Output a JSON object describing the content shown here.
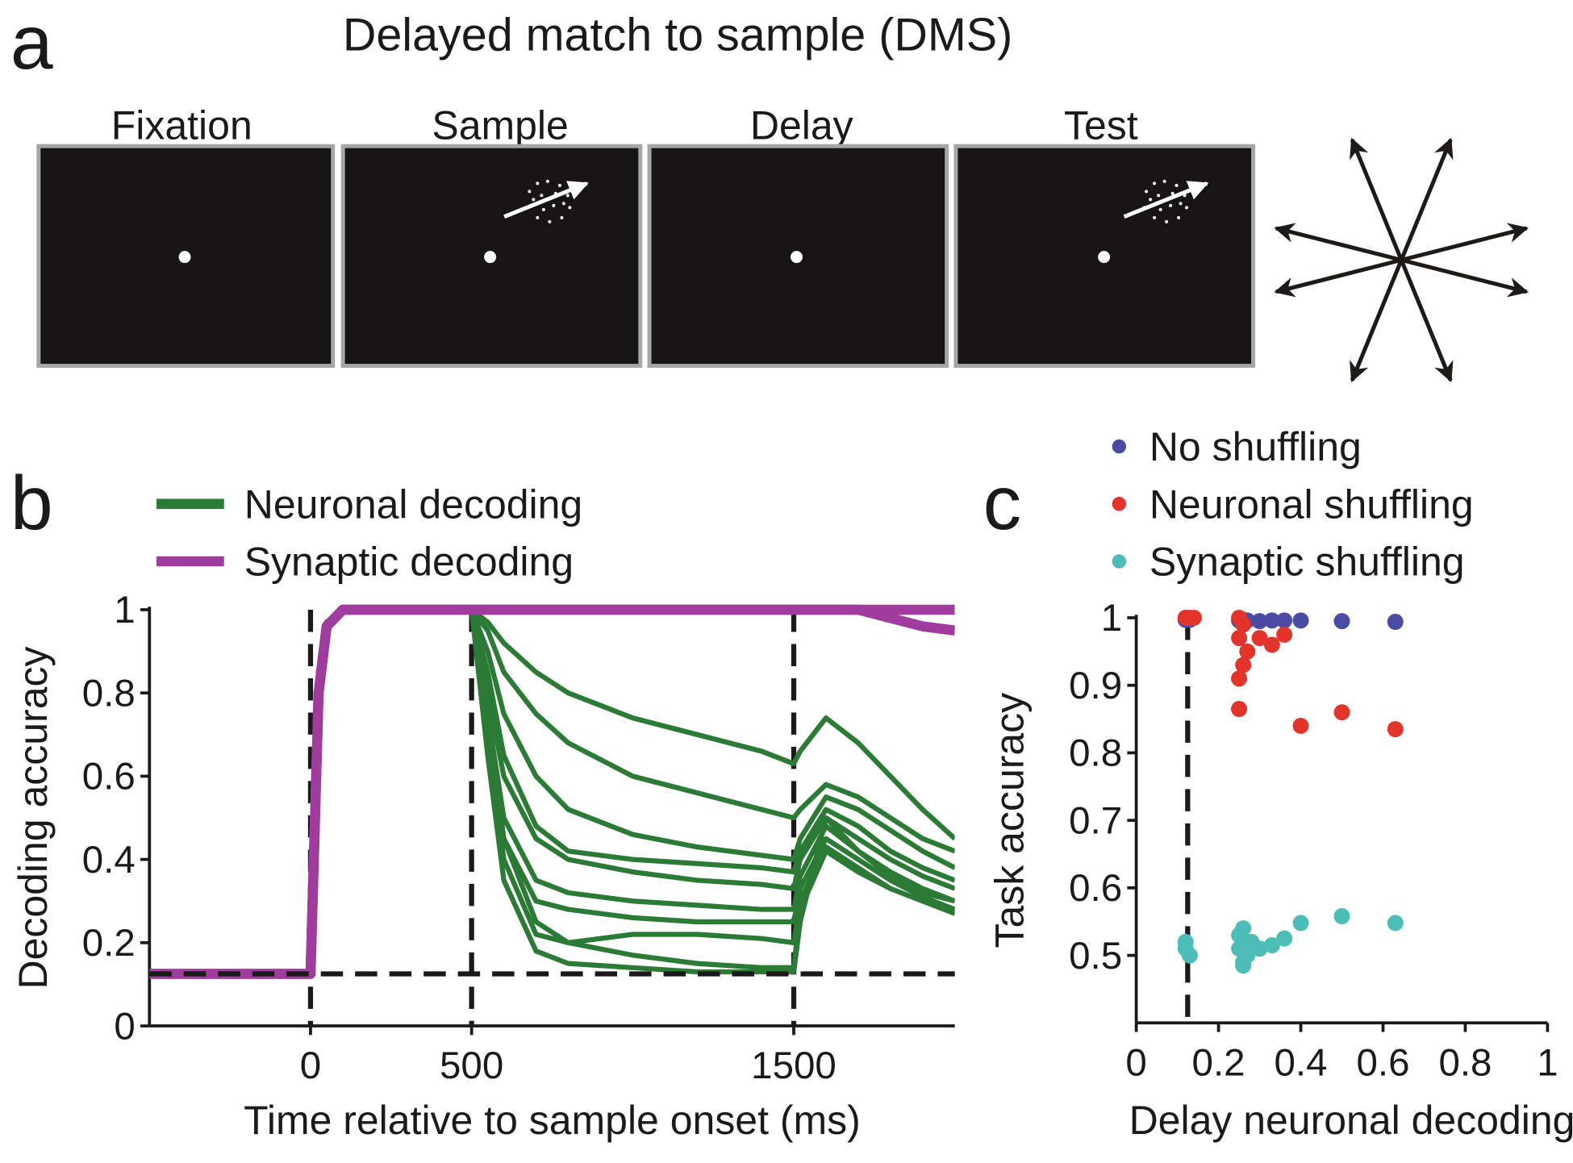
{
  "panel_a": {
    "letter": "a",
    "title": "Delayed match to sample (DMS)",
    "frames": [
      "Fixation",
      "Sample",
      "Delay",
      "Test"
    ]
  },
  "chart_data": [
    {
      "type": "line",
      "letter": "b",
      "xlabel": "Time relative to sample onset (ms)",
      "ylabel": "Decoding accuracy",
      "x": [
        -500,
        -250,
        0,
        25,
        50,
        100,
        200,
        300,
        400,
        500,
        550,
        600,
        700,
        800,
        1000,
        1200,
        1400,
        1500,
        1520,
        1600,
        1700,
        1800,
        1900,
        2000
      ],
      "xlim": [
        -500,
        2000
      ],
      "xticks": [
        0,
        500,
        1500
      ],
      "ylim": [
        0,
        1
      ],
      "yticks": [
        0,
        0.2,
        0.4,
        0.6,
        0.8,
        1
      ],
      "hlines": [
        0.125
      ],
      "vlines": [
        0,
        500,
        1500
      ],
      "series": [
        {
          "name": "Neuronal decoding",
          "color": "#2b7a35",
          "lines": [
            [
              0.125,
              0.13,
              0.125,
              0.85,
              0.97,
              1,
              1,
              1,
              1,
              1,
              0.97,
              0.92,
              0.85,
              0.8,
              0.74,
              0.7,
              0.66,
              0.63,
              0.66,
              0.74,
              0.68,
              0.6,
              0.52,
              0.45
            ],
            [
              0.125,
              0.13,
              0.125,
              0.85,
              0.97,
              1,
              1,
              1,
              1,
              1,
              0.95,
              0.85,
              0.75,
              0.68,
              0.6,
              0.56,
              0.52,
              0.5,
              0.52,
              0.58,
              0.55,
              0.5,
              0.45,
              0.42
            ],
            [
              0.125,
              0.13,
              0.125,
              0.85,
              0.97,
              1,
              1,
              1,
              1,
              1,
              0.9,
              0.75,
              0.6,
              0.52,
              0.46,
              0.43,
              0.41,
              0.4,
              0.45,
              0.55,
              0.52,
              0.47,
              0.42,
              0.38
            ],
            [
              0.125,
              0.13,
              0.125,
              0.85,
              0.97,
              1,
              1,
              1,
              1,
              1,
              0.85,
              0.65,
              0.48,
              0.42,
              0.4,
              0.39,
              0.38,
              0.37,
              0.42,
              0.52,
              0.48,
              0.42,
              0.38,
              0.35
            ],
            [
              0.125,
              0.13,
              0.125,
              0.85,
              0.97,
              1,
              1,
              1,
              1,
              1,
              0.8,
              0.6,
              0.45,
              0.4,
              0.37,
              0.35,
              0.34,
              0.33,
              0.4,
              0.5,
              0.45,
              0.4,
              0.36,
              0.33
            ],
            [
              0.125,
              0.13,
              0.125,
              0.85,
              0.97,
              1,
              1,
              1,
              1,
              1,
              0.75,
              0.5,
              0.35,
              0.32,
              0.3,
              0.29,
              0.28,
              0.28,
              0.36,
              0.48,
              0.42,
              0.37,
              0.33,
              0.3
            ],
            [
              0.125,
              0.13,
              0.125,
              0.85,
              0.97,
              1,
              1,
              1,
              1,
              1,
              0.7,
              0.45,
              0.3,
              0.28,
              0.26,
              0.25,
              0.25,
              0.25,
              0.33,
              0.45,
              0.4,
              0.35,
              0.31,
              0.28
            ],
            [
              0.125,
              0.13,
              0.125,
              0.85,
              0.97,
              1,
              1,
              1,
              1,
              1,
              0.7,
              0.4,
              0.22,
              0.2,
              0.22,
              0.22,
              0.21,
              0.2,
              0.3,
              0.43,
              0.38,
              0.33,
              0.3,
              0.27
            ],
            [
              0.125,
              0.13,
              0.125,
              0.85,
              0.97,
              1,
              1,
              1,
              1,
              1,
              0.75,
              0.45,
              0.25,
              0.2,
              0.17,
              0.15,
              0.14,
              0.14,
              0.28,
              0.42,
              0.37,
              0.33,
              0.3,
              0.28
            ],
            [
              0.125,
              0.13,
              0.125,
              0.85,
              0.97,
              1,
              1,
              1,
              1,
              1,
              0.65,
              0.35,
              0.18,
              0.15,
              0.14,
              0.13,
              0.13,
              0.13,
              0.25,
              0.5,
              0.42,
              0.36,
              0.32,
              0.3
            ]
          ]
        },
        {
          "name": "Synaptic decoding",
          "color": "#a03c9e",
          "lines": [
            [
              0.125,
              0.125,
              0.125,
              0.8,
              0.96,
              1,
              1,
              1,
              1,
              1,
              1,
              1,
              1,
              1,
              1,
              1,
              1,
              1,
              1,
              1,
              1,
              1,
              1,
              1
            ],
            [
              0.125,
              0.125,
              0.125,
              0.8,
              0.96,
              1,
              1,
              1,
              1,
              1,
              1,
              1,
              1,
              1,
              1,
              1,
              1,
              1,
              1,
              1,
              1,
              0.98,
              0.96,
              0.95
            ]
          ]
        }
      ]
    },
    {
      "type": "scatter",
      "letter": "c",
      "xlabel": "Delay neuronal decoding",
      "ylabel": "Task accuracy",
      "xlim": [
        0,
        1
      ],
      "xticks": [
        0,
        0.2,
        0.4,
        0.6,
        0.8,
        1
      ],
      "ylim": [
        0.4,
        1
      ],
      "yticks": [
        0.5,
        0.6,
        0.7,
        0.8,
        0.9,
        1
      ],
      "vlines": [
        0.125
      ],
      "series": [
        {
          "name": "No shuffling",
          "color": "#4b4ba3",
          "x": [
            0.12,
            0.13,
            0.25,
            0.26,
            0.27,
            0.3,
            0.33,
            0.36,
            0.4,
            0.5,
            0.63
          ],
          "y": [
            0.997,
            0.997,
            0.996,
            0.997,
            0.996,
            0.995,
            0.996,
            0.996,
            0.996,
            0.995,
            0.994
          ]
        },
        {
          "name": "Neuronal shuffling",
          "color": "#e2342b",
          "x": [
            0.12,
            0.13,
            0.14,
            0.25,
            0.26,
            0.25,
            0.27,
            0.26,
            0.25,
            0.3,
            0.33,
            0.36,
            0.25,
            0.4,
            0.5,
            0.63
          ],
          "y": [
            1,
            1,
            1,
            1,
            0.99,
            0.97,
            0.95,
            0.93,
            0.91,
            0.97,
            0.96,
            0.975,
            0.865,
            0.84,
            0.86,
            0.835
          ]
        },
        {
          "name": "Synaptic shuffling",
          "color": "#4cbdb7",
          "x": [
            0.12,
            0.13,
            0.12,
            0.25,
            0.26,
            0.26,
            0.27,
            0.28,
            0.3,
            0.33,
            0.36,
            0.4,
            0.5,
            0.63,
            0.25,
            0.26
          ],
          "y": [
            0.52,
            0.5,
            0.51,
            0.51,
            0.54,
            0.49,
            0.5,
            0.52,
            0.51,
            0.515,
            0.525,
            0.548,
            0.558,
            0.548,
            0.53,
            0.485
          ]
        }
      ]
    }
  ]
}
